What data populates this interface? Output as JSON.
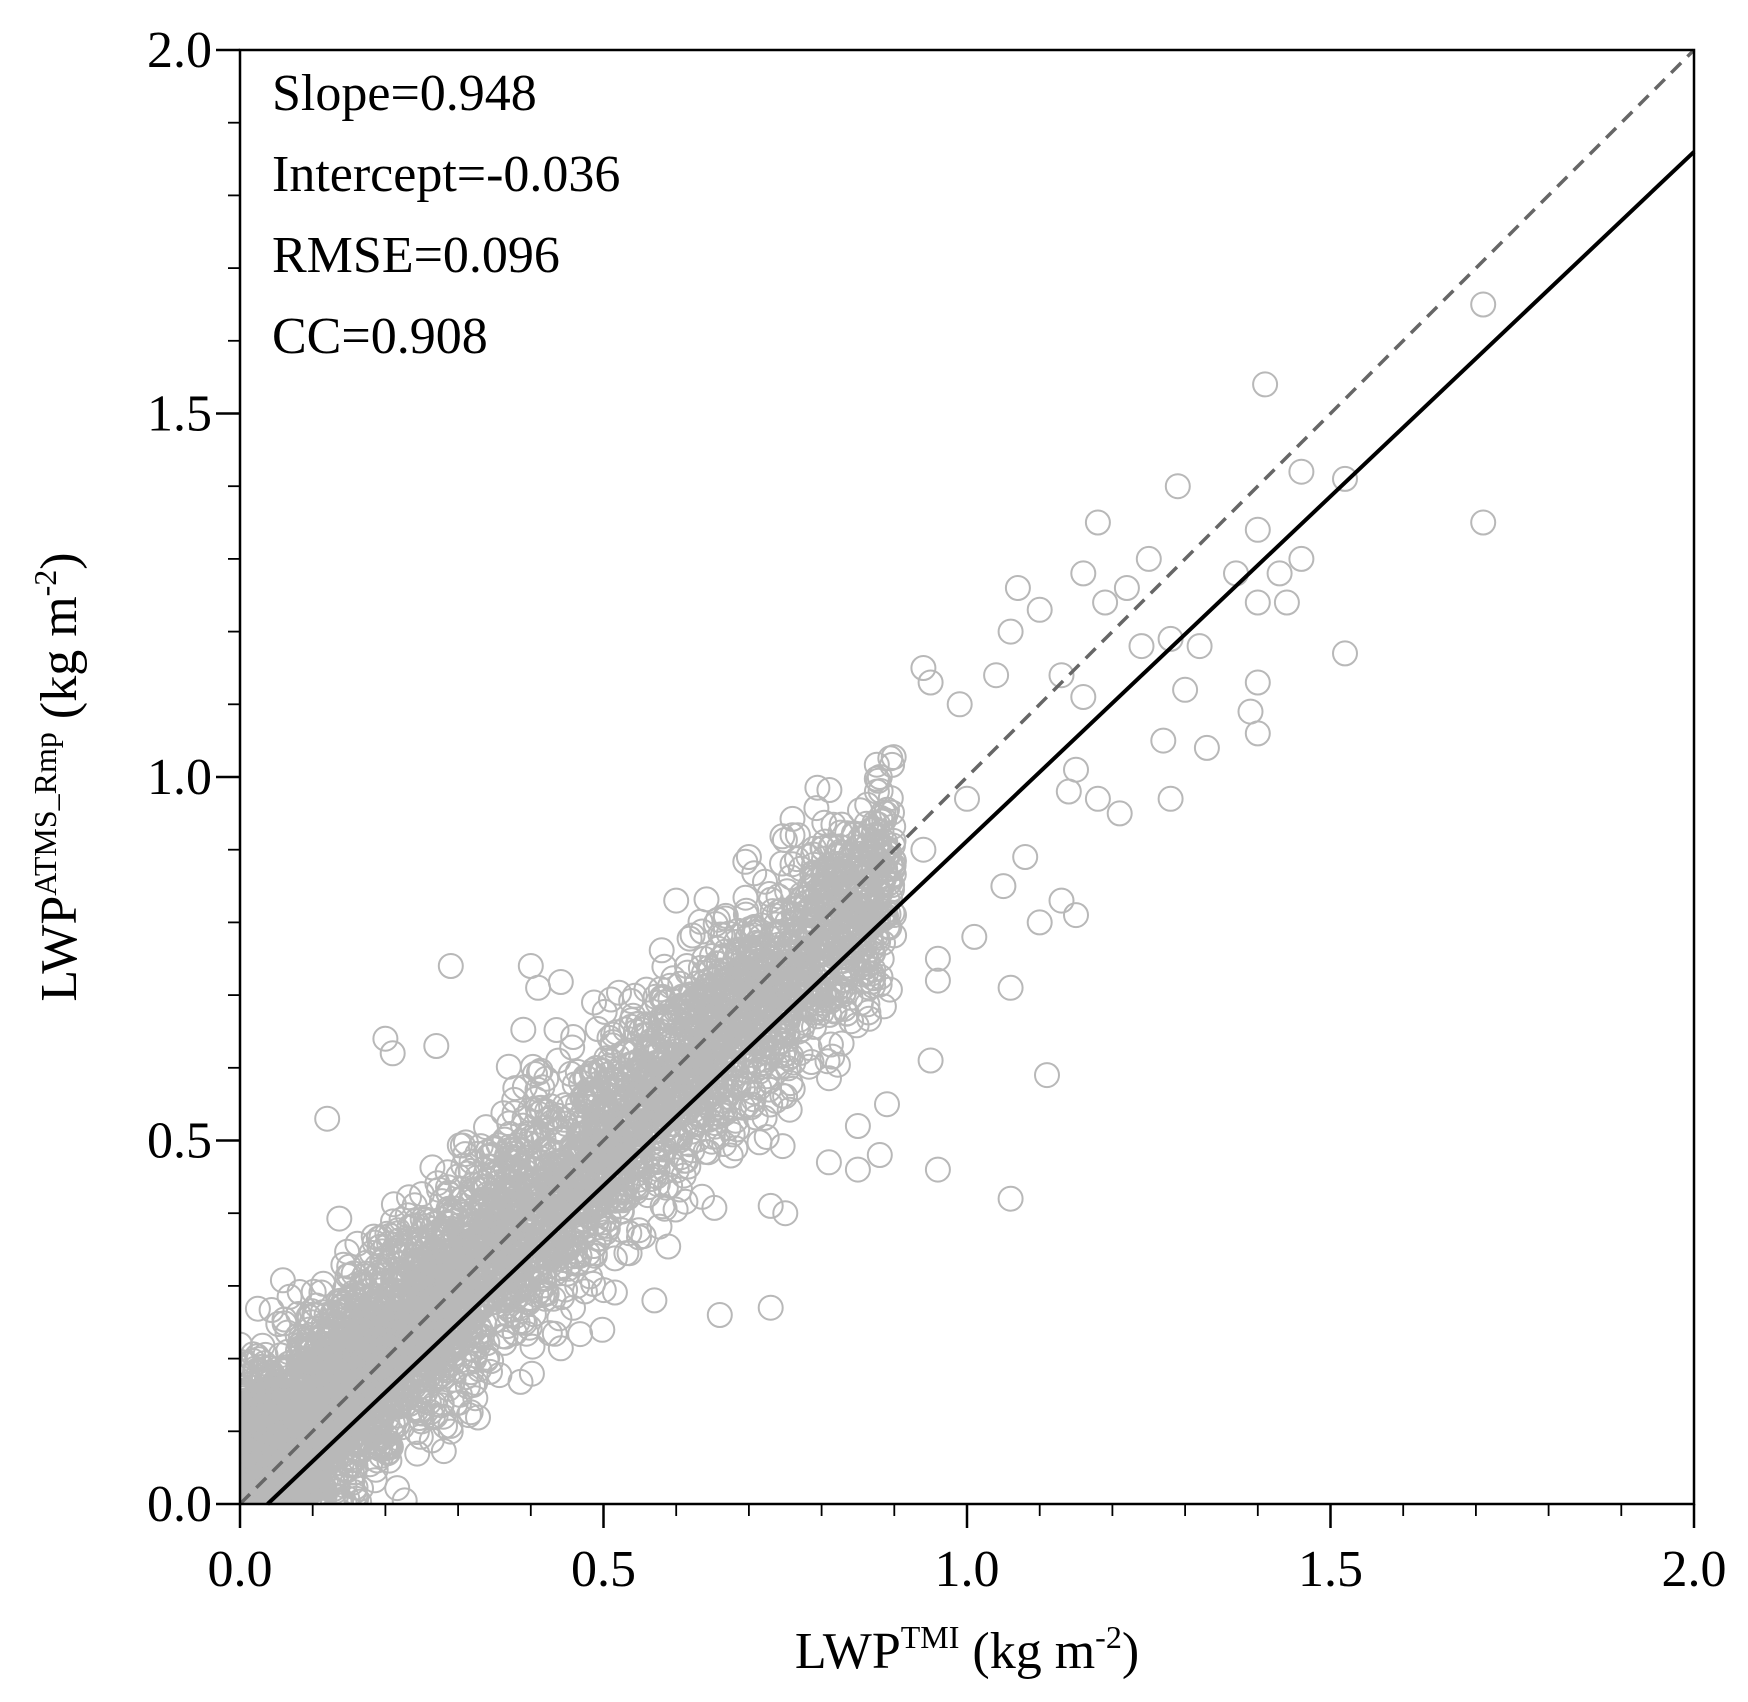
{
  "chart_data": {
    "type": "scatter",
    "title": "",
    "xlabel": {
      "base": "LWP",
      "superscript": "TMI",
      "unit_open": " (kg m",
      "unit_sup": "-2",
      "unit_close": ")"
    },
    "ylabel": {
      "base": "LWP",
      "superscript": "ATMS_Rmp",
      "unit_open": " (kg m",
      "unit_sup": "-2",
      "unit_close": ")"
    },
    "xlim": [
      0.0,
      2.0
    ],
    "ylim": [
      0.0,
      2.0
    ],
    "x_major_ticks": [
      0.0,
      0.5,
      1.0,
      1.5,
      2.0
    ],
    "y_major_ticks": [
      0.0,
      0.5,
      1.0,
      1.5,
      2.0
    ],
    "x_tick_labels": [
      "0.0",
      "0.5",
      "1.0",
      "1.5",
      "2.0"
    ],
    "y_tick_labels": [
      "0.0",
      "0.5",
      "1.0",
      "1.5",
      "2.0"
    ],
    "minor_tick_step": 0.1,
    "marker": {
      "shape": "open-circle",
      "color": "#b8b8b8"
    },
    "stats": [
      "Slope=0.948",
      "Intercept=-0.036",
      "RMSE=0.096",
      "CC=0.908"
    ],
    "fit_line": {
      "slope": 0.948,
      "intercept": -0.036,
      "color": "#000000",
      "style": "solid"
    },
    "identity_line": {
      "slope": 1.0,
      "intercept": 0.0,
      "color": "#666666",
      "style": "dashed"
    },
    "dense_cloud": {
      "count": 5200,
      "x_range": [
        0.0,
        0.9
      ],
      "spread": 0.075,
      "seed": 12345
    },
    "outlier_points": [
      [
        1.71,
        1.65
      ],
      [
        1.41,
        1.54
      ],
      [
        1.46,
        1.42
      ],
      [
        1.52,
        1.41
      ],
      [
        1.29,
        1.4
      ],
      [
        1.71,
        1.35
      ],
      [
        1.18,
        1.35
      ],
      [
        1.4,
        1.34
      ],
      [
        1.25,
        1.3
      ],
      [
        1.46,
        1.3
      ],
      [
        1.43,
        1.28
      ],
      [
        1.37,
        1.28
      ],
      [
        1.16,
        1.28
      ],
      [
        1.07,
        1.26
      ],
      [
        1.22,
        1.26
      ],
      [
        1.19,
        1.24
      ],
      [
        1.44,
        1.24
      ],
      [
        1.4,
        1.24
      ],
      [
        1.1,
        1.23
      ],
      [
        1.06,
        1.2
      ],
      [
        1.28,
        1.19
      ],
      [
        1.32,
        1.18
      ],
      [
        1.52,
        1.17
      ],
      [
        1.24,
        1.18
      ],
      [
        0.94,
        1.15
      ],
      [
        1.13,
        1.14
      ],
      [
        1.04,
        1.14
      ],
      [
        1.4,
        1.13
      ],
      [
        0.95,
        1.13
      ],
      [
        1.3,
        1.12
      ],
      [
        1.16,
        1.11
      ],
      [
        1.39,
        1.09
      ],
      [
        0.99,
        1.1
      ],
      [
        1.27,
        1.05
      ],
      [
        1.4,
        1.06
      ],
      [
        1.33,
        1.04
      ],
      [
        1.15,
        1.01
      ],
      [
        0.88,
        1.0
      ],
      [
        1.18,
        0.97
      ],
      [
        1.28,
        0.97
      ],
      [
        1.21,
        0.95
      ],
      [
        1.14,
        0.98
      ],
      [
        0.76,
        0.92
      ],
      [
        0.94,
        0.9
      ],
      [
        1.08,
        0.89
      ],
      [
        1.05,
        0.85
      ],
      [
        1.13,
        0.83
      ],
      [
        1.15,
        0.81
      ],
      [
        1.1,
        0.8
      ],
      [
        0.6,
        0.83
      ],
      [
        1.01,
        0.78
      ],
      [
        0.96,
        0.75
      ],
      [
        0.29,
        0.74
      ],
      [
        0.4,
        0.74
      ],
      [
        0.41,
        0.71
      ],
      [
        0.96,
        0.72
      ],
      [
        1.06,
        0.71
      ],
      [
        0.2,
        0.64
      ],
      [
        0.21,
        0.62
      ],
      [
        0.27,
        0.63
      ],
      [
        0.95,
        0.61
      ],
      [
        1.11,
        0.59
      ],
      [
        0.12,
        0.53
      ],
      [
        0.89,
        0.55
      ],
      [
        0.81,
        0.47
      ],
      [
        0.88,
        0.48
      ],
      [
        0.85,
        0.46
      ],
      [
        0.96,
        0.46
      ],
      [
        1.06,
        0.42
      ],
      [
        0.75,
        0.4
      ],
      [
        0.73,
        0.41
      ],
      [
        0.73,
        0.27
      ],
      [
        0.66,
        0.26
      ],
      [
        0.57,
        0.28
      ],
      [
        0.85,
        0.52
      ],
      [
        0.7,
        0.89
      ],
      [
        0.76,
        0.88
      ],
      [
        1.0,
        0.97
      ]
    ]
  }
}
